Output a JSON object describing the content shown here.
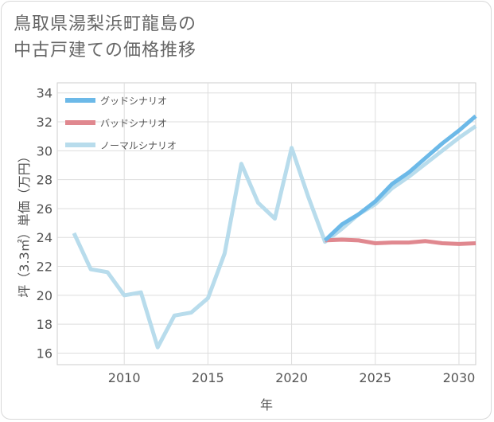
{
  "title_lines": [
    "鳥取県湯梨浜町龍島の",
    "中古戸建ての価格推移"
  ],
  "chart_data": {
    "type": "line",
    "xlabel": "年",
    "ylabel": "坪（3.3㎡）単価（万円）",
    "xlim": [
      2006,
      2031
    ],
    "ylim": [
      15.2,
      34.7
    ],
    "x_ticks": [
      2010,
      2015,
      2020,
      2025,
      2030
    ],
    "y_ticks": [
      16,
      18,
      20,
      22,
      24,
      26,
      28,
      30,
      32,
      34
    ],
    "grid": true,
    "legend_position": "top-left",
    "series": [
      {
        "name": "グッドシナリオ",
        "color": "#6cb9e8",
        "x": [
          2022,
          2023,
          2024,
          2025,
          2026,
          2027,
          2028,
          2029,
          2030,
          2031
        ],
        "y": [
          23.8,
          24.9,
          25.6,
          26.5,
          27.7,
          28.5,
          29.5,
          30.5,
          31.4,
          32.4
        ]
      },
      {
        "name": "バッドシナリオ",
        "color": "#e0888f",
        "x": [
          2022,
          2023,
          2024,
          2025,
          2026,
          2027,
          2028,
          2029,
          2030,
          2031
        ],
        "y": [
          23.8,
          23.85,
          23.8,
          23.6,
          23.65,
          23.65,
          23.75,
          23.6,
          23.55,
          23.6
        ]
      },
      {
        "name": "ノーマルシナリオ",
        "color": "#b8dcec",
        "x": [
          2007,
          2008,
          2009,
          2010,
          2011,
          2012,
          2013,
          2014,
          2015,
          2016,
          2017,
          2018,
          2019,
          2020,
          2021,
          2022,
          2023,
          2024,
          2025,
          2026,
          2027,
          2028,
          2029,
          2030,
          2031
        ],
        "y": [
          24.3,
          21.8,
          21.6,
          20.0,
          20.2,
          16.4,
          18.6,
          18.8,
          19.8,
          22.9,
          29.1,
          26.4,
          25.3,
          30.2,
          26.8,
          23.7,
          24.6,
          25.6,
          26.3,
          27.4,
          28.2,
          29.1,
          30.0,
          30.9,
          31.7
        ]
      }
    ]
  }
}
